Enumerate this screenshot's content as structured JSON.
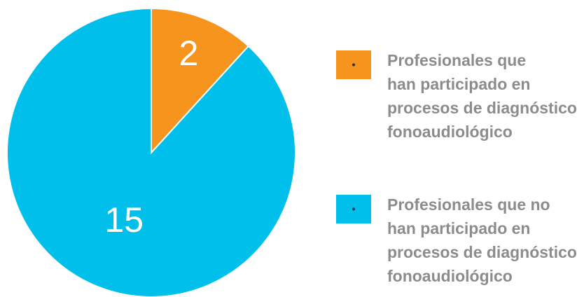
{
  "chart_data": {
    "type": "pie",
    "categories": [
      "Profesionales que\nhan participado en\nprocesos de diagnóstico\nfonoaudiológico",
      "Profesionales que no\nhan participado en\nprocesos de diagnóstico\nfonoaudiológico"
    ],
    "values": [
      2,
      15
    ],
    "colors": [
      "#f7941d",
      "#00bfea"
    ]
  }
}
